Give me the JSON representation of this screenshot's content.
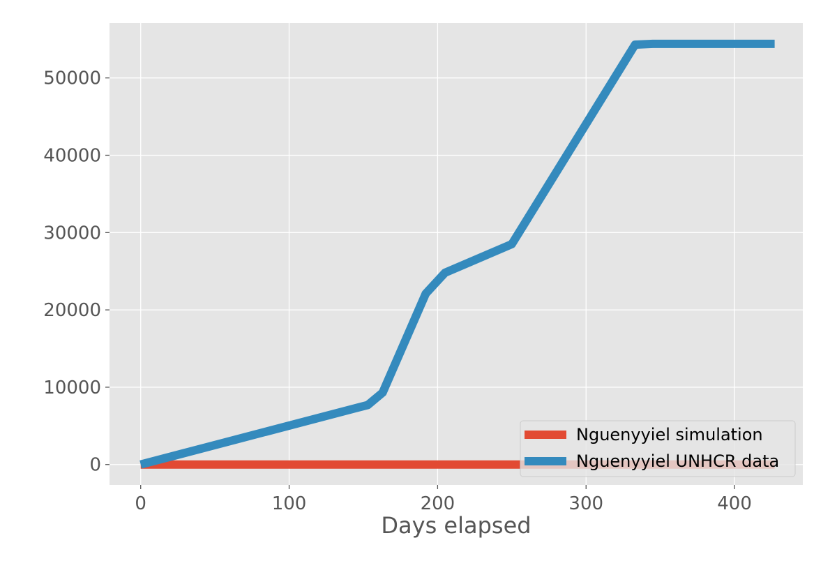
{
  "chart_data": {
    "type": "line",
    "title": "",
    "xlabel": "Days elapsed",
    "ylabel": "",
    "xlim": [
      -21,
      446
    ],
    "ylim": [
      -2640,
      57100
    ],
    "x_ticks": [
      0,
      100,
      200,
      300,
      400
    ],
    "y_ticks": [
      0,
      10000,
      20000,
      30000,
      40000,
      50000
    ],
    "grid": true,
    "legend_position": "lower right",
    "series": [
      {
        "name": "Nguenyyiel simulation",
        "color": "#E24A33",
        "x": [
          0,
          427
        ],
        "y": [
          0,
          0
        ]
      },
      {
        "name": "Nguenyyiel UNHCR data",
        "color": "#348ABD",
        "x": [
          0,
          153,
          163,
          192,
          205,
          250,
          333,
          345,
          427
        ],
        "y": [
          0,
          7700,
          9300,
          22100,
          24800,
          28500,
          54300,
          54400,
          54400
        ]
      }
    ]
  }
}
